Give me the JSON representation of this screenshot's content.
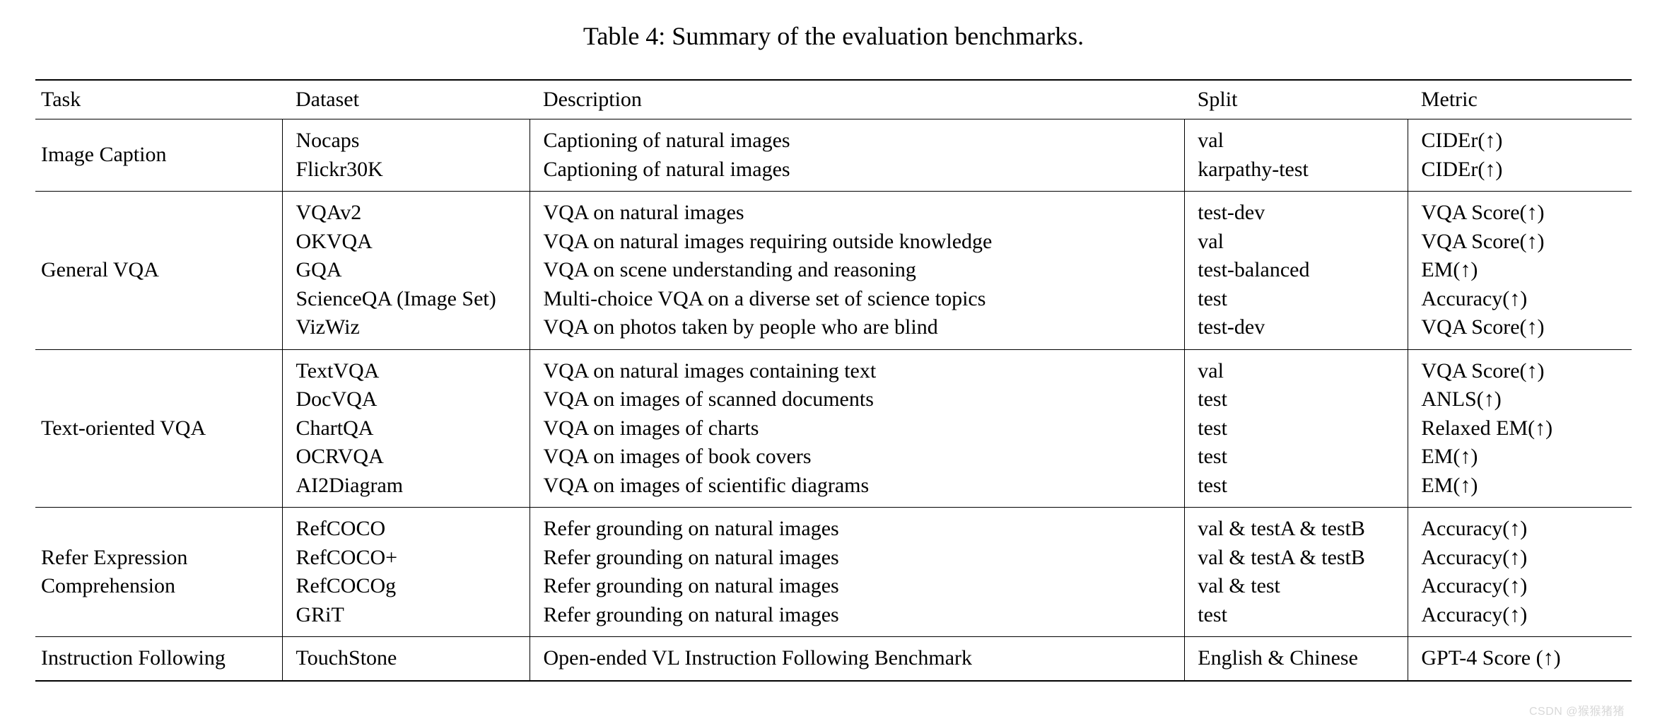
{
  "caption": "Table 4: Summary of the evaluation benchmarks.",
  "columns": [
    "Task",
    "Dataset",
    "Description",
    "Split",
    "Metric"
  ],
  "groups": [
    {
      "task": "Image Caption",
      "rows": [
        {
          "dataset": "Nocaps",
          "description": "Captioning of natural images",
          "split": "val",
          "metric": "CIDEr(↑)"
        },
        {
          "dataset": "Flickr30K",
          "description": "Captioning of natural images",
          "split": "karpathy-test",
          "metric": "CIDEr(↑)"
        }
      ]
    },
    {
      "task": "General VQA",
      "rows": [
        {
          "dataset": "VQAv2",
          "description": "VQA on natural images",
          "split": "test-dev",
          "metric": "VQA Score(↑)"
        },
        {
          "dataset": "OKVQA",
          "description": "VQA on natural images requiring outside knowledge",
          "split": "val",
          "metric": "VQA Score(↑)"
        },
        {
          "dataset": "GQA",
          "description": "VQA on scene understanding and reasoning",
          "split": "test-balanced",
          "metric": "EM(↑)"
        },
        {
          "dataset": "ScienceQA (Image Set)",
          "description": "Multi-choice VQA on a diverse set of science topics",
          "split": "test",
          "metric": "Accuracy(↑)"
        },
        {
          "dataset": "VizWiz",
          "description": "VQA on photos taken by people who are blind",
          "split": "test-dev",
          "metric": "VQA Score(↑)"
        }
      ]
    },
    {
      "task": "Text-oriented VQA",
      "rows": [
        {
          "dataset": "TextVQA",
          "description": "VQA on natural images containing text",
          "split": "val",
          "metric": "VQA Score(↑)"
        },
        {
          "dataset": "DocVQA",
          "description": "VQA on images of scanned documents",
          "split": "test",
          "metric": "ANLS(↑)"
        },
        {
          "dataset": "ChartQA",
          "description": "VQA on images of charts",
          "split": "test",
          "metric": "Relaxed EM(↑)"
        },
        {
          "dataset": "OCRVQA",
          "description": "VQA on images of book covers",
          "split": "test",
          "metric": "EM(↑)"
        },
        {
          "dataset": "AI2Diagram",
          "description": "VQA on images of scientific diagrams",
          "split": "test",
          "metric": "EM(↑)"
        }
      ]
    },
    {
      "task": "Refer Expression Comprehension",
      "rows": [
        {
          "dataset": "RefCOCO",
          "description": "Refer grounding on natural images",
          "split": "val & testA & testB",
          "metric": "Accuracy(↑)"
        },
        {
          "dataset": "RefCOCO+",
          "description": "Refer grounding on natural images",
          "split": "val & testA & testB",
          "metric": "Accuracy(↑)"
        },
        {
          "dataset": "RefCOCOg",
          "description": "Refer grounding on natural images",
          "split": "val & test",
          "metric": "Accuracy(↑)"
        },
        {
          "dataset": "GRiT",
          "description": "Refer grounding on natural images",
          "split": "test",
          "metric": "Accuracy(↑)"
        }
      ]
    },
    {
      "task": "Instruction Following",
      "rows": [
        {
          "dataset": "TouchStone",
          "description": "Open-ended VL Instruction Following Benchmark",
          "split": "English & Chinese",
          "metric": "GPT-4 Score (↑)"
        }
      ]
    }
  ],
  "watermark": "CSDN @猴猴猪猪"
}
